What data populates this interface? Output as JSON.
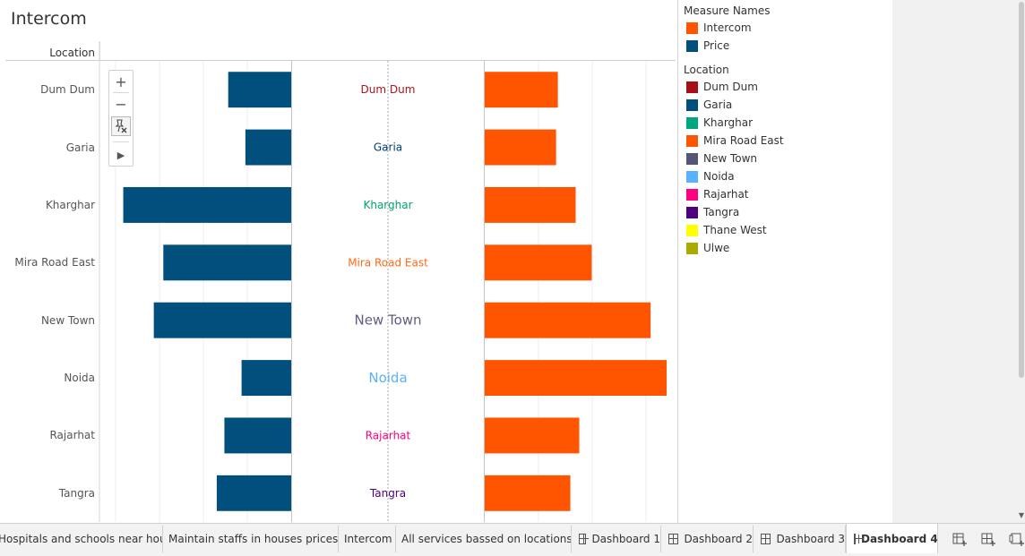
{
  "viz": {
    "title": "Intercom",
    "row_header": "Location"
  },
  "chart_data": {
    "type": "bar",
    "layout": "butterfly",
    "categories": [
      "Dum Dum",
      "Garia",
      "Kharghar",
      "Mira Road East",
      "New Town",
      "Noida",
      "Rajarhat",
      "Tangra"
    ],
    "series": [
      {
        "name": "Price",
        "color": "#004F7C",
        "direction": "left",
        "values": [
          33,
          24,
          88,
          67,
          72,
          26,
          35,
          39
        ]
      },
      {
        "name": "Intercom",
        "color": "#FF5400",
        "direction": "right",
        "values": [
          41,
          40,
          51,
          60,
          93,
          102,
          53,
          48
        ]
      }
    ],
    "xlim_left": [
      0,
      100
    ],
    "xlim_right": [
      0,
      107
    ],
    "grid": true,
    "center_label_colors": [
      "#B0121B",
      "#003F72",
      "#00A26B",
      "#FF6A15",
      "#5E5E80",
      "#5AB1FF",
      "#FF007A",
      "#4D0072"
    ]
  },
  "zoom_tools": {
    "zoom_in": "+",
    "zoom_out": "−",
    "play": "▶"
  },
  "legends": {
    "measure_names": {
      "title": "Measure Names",
      "items": [
        {
          "label": "Intercom",
          "color": "#FF5400"
        },
        {
          "label": "Price",
          "color": "#004F7C"
        }
      ]
    },
    "location": {
      "title": "Location",
      "items": [
        {
          "label": "Dum Dum",
          "color": "#A50F15"
        },
        {
          "label": "Garia",
          "color": "#004F7C"
        },
        {
          "label": "Kharghar",
          "color": "#00A67E"
        },
        {
          "label": "Mira Road East",
          "color": "#FF5400"
        },
        {
          "label": "New Town",
          "color": "#555577"
        },
        {
          "label": "Noida",
          "color": "#5AB1FF"
        },
        {
          "label": "Rajarhat",
          "color": "#FF007F"
        },
        {
          "label": "Tangra",
          "color": "#4D0080"
        },
        {
          "label": "Thane West",
          "color": "#FFFF00"
        },
        {
          "label": "Ulwe",
          "color": "#AAAA00"
        }
      ]
    }
  },
  "tabs": [
    {
      "label": "Hospitals and schools near hous...",
      "type": "sheet",
      "active": false
    },
    {
      "label": "Maintain staffs in houses prices",
      "type": "sheet",
      "active": false
    },
    {
      "label": "Intercom",
      "type": "sheet",
      "active": false
    },
    {
      "label": "All services bassed on locations",
      "type": "sheet",
      "active": false
    },
    {
      "label": "Dashboard 1",
      "type": "dashboard",
      "active": false
    },
    {
      "label": "Dashboard 2",
      "type": "dashboard",
      "active": false
    },
    {
      "label": "Dashboard 3",
      "type": "dashboard",
      "active": false
    },
    {
      "label": "Dashboard 4",
      "type": "dashboard",
      "active": true
    }
  ],
  "tab_actions": [
    "new-worksheet-icon",
    "new-dashboard-icon",
    "new-story-icon"
  ]
}
